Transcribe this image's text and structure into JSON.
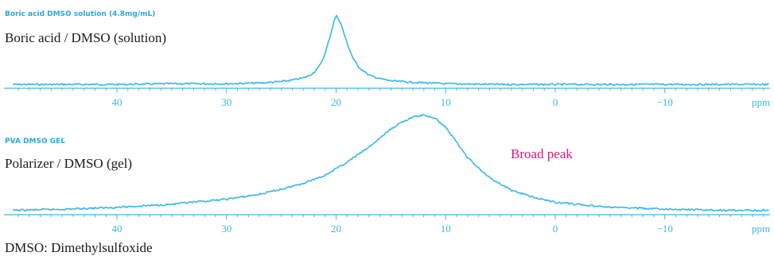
{
  "colors": {
    "spectrum": "#39b7e6",
    "axis": "#39b7e6",
    "annotation": "#e0157a",
    "tag": "#2aa7dd"
  },
  "footnote": "DMSO: Dimethylsulfoxide",
  "chart_data": [
    {
      "type": "line",
      "tag": "Boric acid DMSO solution (4.8mg/mL)",
      "label": "Boric acid / DMSO (solution)",
      "xlabel": "ppm",
      "ticks": [
        "40",
        "30",
        "20",
        "10",
        "0",
        "−10"
      ],
      "tick_values": [
        40,
        30,
        20,
        10,
        0,
        -10
      ],
      "xlim": [
        49.5,
        -19.5
      ],
      "x_reversed": true,
      "ylim": [
        0,
        1.0
      ],
      "grid": false,
      "series": [
        {
          "x": [
            49.5,
            40,
            35,
            30,
            27,
            25,
            24,
            23,
            22.5,
            22,
            21.5,
            21,
            20.5,
            20.2,
            20,
            19.8,
            19.5,
            19,
            18.5,
            18,
            17,
            16,
            15,
            13,
            10,
            5,
            0,
            -5,
            -10,
            -15,
            -19.5
          ],
          "y": [
            0.02,
            0.02,
            0.03,
            0.03,
            0.04,
            0.06,
            0.08,
            0.11,
            0.14,
            0.19,
            0.28,
            0.45,
            0.72,
            0.9,
            0.98,
            0.95,
            0.84,
            0.6,
            0.4,
            0.27,
            0.15,
            0.1,
            0.07,
            0.05,
            0.03,
            0.02,
            0.02,
            0.02,
            0.02,
            0.02,
            0.02
          ]
        }
      ]
    },
    {
      "type": "line",
      "tag": "PVA DMSO GEL",
      "label": "Polarizer / DMSO (gel)",
      "annotation": "Broad peak",
      "xlabel": "ppm",
      "ticks": [
        "40",
        "30",
        "20",
        "10",
        "0",
        "−10"
      ],
      "tick_values": [
        40,
        30,
        20,
        10,
        0,
        -10
      ],
      "xlim": [
        49.5,
        -19.5
      ],
      "x_reversed": true,
      "ylim": [
        0,
        1.0
      ],
      "grid": false,
      "series": [
        {
          "x": [
            49.5,
            45,
            40,
            35,
            30,
            27,
            25,
            23,
            21,
            19,
            17,
            15,
            14,
            13,
            12,
            11,
            10,
            9,
            8,
            7,
            6,
            5,
            4,
            2,
            0,
            -3,
            -5,
            -8,
            -10,
            -15,
            -19.5
          ],
          "y": [
            0.02,
            0.03,
            0.05,
            0.08,
            0.13,
            0.18,
            0.23,
            0.29,
            0.37,
            0.5,
            0.65,
            0.83,
            0.9,
            0.95,
            0.97,
            0.94,
            0.85,
            0.7,
            0.55,
            0.44,
            0.35,
            0.28,
            0.22,
            0.15,
            0.1,
            0.07,
            0.05,
            0.04,
            0.03,
            0.02,
            0.02
          ]
        }
      ]
    }
  ]
}
